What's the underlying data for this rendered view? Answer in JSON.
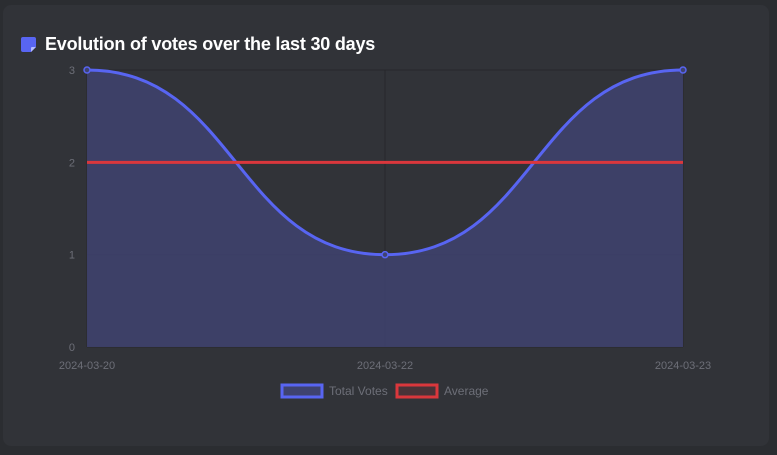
{
  "card": {
    "title": "Evolution of votes over the last 30 days",
    "icon": "note-icon"
  },
  "colors": {
    "background": "#2b2d31",
    "card": "#313338",
    "total_votes_line": "#5865f2",
    "total_votes_fill": "#3f4370",
    "average_line": "#da373c",
    "grid": "#26272b",
    "tick_text": "#6d6f78",
    "title_text": "#ffffff"
  },
  "chart_data": {
    "type": "line",
    "categories": [
      "2024-03-20",
      "2024-03-22",
      "2024-03-23"
    ],
    "series": [
      {
        "name": "Total Votes",
        "values": [
          3,
          1,
          3
        ],
        "fill": true,
        "smooth": true
      },
      {
        "name": "Average",
        "values": [
          2,
          2,
          2
        ],
        "fill": false,
        "smooth": false
      }
    ],
    "y_ticks": [
      "0",
      "1",
      "2",
      "3"
    ],
    "ylim": [
      0,
      3
    ],
    "grid": true,
    "legend_position": "bottom"
  }
}
